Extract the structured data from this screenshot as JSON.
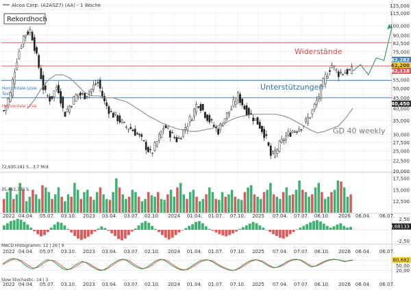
{
  "chart_data": {
    "type": "candlestick",
    "title": "Alcoa Corp. (A2ASZ7) (AA) - 1 Woche",
    "legend_label": "Alcoa Corp. (A2ASZ7) (AA) - 1 Woche",
    "scale": "log",
    "ylim": [
      20000,
      125000
    ],
    "y_ticks": [
      "125,000",
      "115,000",
      "100,000",
      "90,000",
      "82,500",
      "75,000",
      "67,500",
      "62,500",
      "55,000",
      "50,000",
      "45,000",
      "40,000",
      "35,000",
      "30,000",
      "27,500",
      "25,000",
      "22,500",
      "20,000"
    ],
    "x_ticks": [
      "2022",
      "04.04.",
      "05.07.",
      "03.10.",
      "2023",
      "03.04.",
      "03.07.",
      "02.10.",
      "2024",
      "01.04.",
      "01.07.",
      "07.10.",
      "2025",
      "07.04.",
      "07.07.",
      "06.10.",
      "2026",
      "06.04.",
      "06.07."
    ],
    "price_series": [
      {
        "date": "2022",
        "value": 39000
      },
      {
        "date": "2022-02",
        "value": 47000
      },
      {
        "date": "2022-03",
        "value": 70000
      },
      {
        "date": "04.04.",
        "value": 90000
      },
      {
        "date": "2022-04-15",
        "value": 95000
      },
      {
        "date": "2022-05",
        "value": 68000
      },
      {
        "date": "2022-06",
        "value": 48000
      },
      {
        "date": "05.07.",
        "value": 44000
      },
      {
        "date": "2022-08",
        "value": 52000
      },
      {
        "date": "2022-09",
        "value": 37000
      },
      {
        "date": "03.10.",
        "value": 42000
      },
      {
        "date": "2022-11",
        "value": 47000
      },
      {
        "date": "2022-12",
        "value": 46000
      },
      {
        "date": "2023",
        "value": 49000
      },
      {
        "date": "2023-02",
        "value": 54000
      },
      {
        "date": "2023-03",
        "value": 43000
      },
      {
        "date": "03.04.",
        "value": 38000
      },
      {
        "date": "2023-05",
        "value": 36000
      },
      {
        "date": "2023-06",
        "value": 33000
      },
      {
        "date": "03.07.",
        "value": 32000
      },
      {
        "date": "2023-08",
        "value": 30000
      },
      {
        "date": "2023-09",
        "value": 27000
      },
      {
        "date": "02.10.",
        "value": 24000
      },
      {
        "date": "2023-11",
        "value": 28000
      },
      {
        "date": "2023-12",
        "value": 33000
      },
      {
        "date": "2024",
        "value": 30000
      },
      {
        "date": "2024-02",
        "value": 28000
      },
      {
        "date": "2024-03",
        "value": 32000
      },
      {
        "date": "01.04.",
        "value": 36000
      },
      {
        "date": "2024-05",
        "value": 43000
      },
      {
        "date": "2024-06",
        "value": 38000
      },
      {
        "date": "01.07.",
        "value": 34000
      },
      {
        "date": "2024-08",
        "value": 31000
      },
      {
        "date": "2024-09",
        "value": 36000
      },
      {
        "date": "07.10.",
        "value": 40000
      },
      {
        "date": "2024-11",
        "value": 46000
      },
      {
        "date": "2024-12",
        "value": 40000
      },
      {
        "date": "2025",
        "value": 37000
      },
      {
        "date": "2025-02",
        "value": 34000
      },
      {
        "date": "2025-03",
        "value": 30000
      },
      {
        "date": "07.04.",
        "value": 23000
      },
      {
        "date": "2025-05",
        "value": 26000
      },
      {
        "date": "2025-06",
        "value": 29000
      },
      {
        "date": "07.07.",
        "value": 31000
      },
      {
        "date": "2025-08",
        "value": 32000
      },
      {
        "date": "2025-09",
        "value": 34000
      },
      {
        "date": "06.10.",
        "value": 38000
      },
      {
        "date": "2025-11",
        "value": 45000
      },
      {
        "date": "2025-12",
        "value": 56000
      },
      {
        "date": "2026",
        "value": 65000
      },
      {
        "date": "2026-02",
        "value": 59000
      },
      {
        "date": "2026-03",
        "value": 60000
      },
      {
        "date": "2026-03-15",
        "value": 60500
      }
    ],
    "ma_series": {
      "name": "GD 40 weekly",
      "values": [
        40000,
        44000,
        50000,
        55000,
        58000,
        58000,
        56000,
        52000,
        48000,
        46000,
        46000,
        45000,
        45000,
        44000,
        43000,
        41000,
        39000,
        37000,
        35500,
        34000,
        33000,
        32000,
        31500,
        31000,
        31000,
        31500,
        32000,
        33000,
        34000,
        35500,
        36500,
        37000,
        37500,
        37500,
        37500,
        37500,
        37000,
        36000,
        34500,
        33000,
        31500,
        30500,
        31000,
        32000,
        33000,
        36000,
        40000
      ]
    },
    "price_labels": [
      {
        "text": "62,282",
        "color": "#4a7fb0"
      },
      {
        "text": "62,200",
        "color": "#f2d43d"
      },
      {
        "text": "62,118",
        "color": "#e05560"
      },
      {
        "text": "40,450",
        "color": "#333333"
      }
    ],
    "levels": [
      {
        "name": "Rekordhoch",
        "value": 82800,
        "color": "#e36b6b"
      },
      {
        "name": "Widerstände",
        "value": 64000,
        "color": "#e36b6b"
      },
      {
        "name": "Unterstützungen",
        "value": 54500,
        "color": "#3d7fc0"
      },
      {
        "name": "Horizontale Linie",
        "value": 45000,
        "color": "#3d7fc0"
      }
    ],
    "annotations": {
      "record_high": "Rekordhoch",
      "resistance": "Widerstände",
      "support": "Unterstützungen",
      "ma": "GD 40 weekly",
      "hline_blue": "Horizontale Linie",
      "hline_blue_sub": "Text",
      "hline_red": "Horizontale Linie"
    },
    "projection": [
      60500,
      65000,
      58000,
      70000,
      68000,
      98000
    ],
    "volume": {
      "ticks": [
        "17,500",
        "15,000",
        "12,500"
      ],
      "label_max": "72,930,181 S., 3,7 Mrd.",
      "label_min": "35,463,736 S.",
      "ylim": [
        10000,
        18500
      ],
      "values": [
        13000,
        14500,
        15500,
        13000,
        14000,
        16500,
        15000,
        12500,
        13500,
        15000,
        14000,
        13000,
        16000,
        15500,
        14500,
        13000,
        14000,
        15500,
        13500,
        12500,
        14000,
        13500,
        16500,
        15000,
        13000,
        14500,
        15000,
        13500,
        12800,
        14500,
        15500,
        14000,
        13000,
        12800,
        14500,
        17500,
        15500,
        14000,
        13000,
        13500,
        15000,
        14500,
        13500,
        12500,
        13000,
        14500,
        13800,
        13500,
        14500,
        13000,
        12800,
        14000,
        15000,
        13500,
        15500,
        16500,
        14000,
        13000,
        14500,
        15000,
        13500,
        12500,
        13000,
        14000,
        15500,
        14500,
        13000,
        12800,
        14500,
        13500,
        14000,
        15000,
        13500,
        13000,
        12800,
        14500,
        15500,
        16000,
        14000,
        13500,
        13000,
        14500,
        15000,
        16500,
        14000,
        13500,
        13000,
        14500,
        15500,
        13800,
        14000,
        15000,
        17000,
        15000,
        14500,
        13500,
        14000,
        15500,
        16500,
        14500,
        13000,
        13500,
        14500,
        15000,
        17000,
        16800,
        15500,
        13500,
        14000
      ]
    },
    "macd": {
      "label": "MACD Histogramm: 12 | 26 | 9",
      "ticks": [
        "2,50",
        "0,68133",
        "-2,50"
      ],
      "value_label": "0,68133",
      "values": [
        1,
        1.5,
        2,
        2.2,
        2.5,
        2.3,
        1.8,
        1.2,
        0.5,
        -0.3,
        -1,
        -1.5,
        -1.2,
        -0.5,
        0.5,
        1.2,
        1.8,
        1.6,
        1.0,
        0.2,
        -0.6,
        -1.4,
        -2.0,
        -2.3,
        -2.0,
        -1.6,
        -1.0,
        -0.4,
        0.3,
        0.8,
        0.4,
        -0.2,
        -0.8,
        -1.4,
        -2.1,
        -2.4,
        -2.0,
        -1.2,
        -0.4,
        0.3,
        1.0,
        1.6,
        2.0,
        1.6,
        0.9,
        0.2,
        -0.5,
        -1.2,
        -1.8,
        -2.2,
        -1.8,
        -1.2,
        -0.6,
        -0.1,
        0.4,
        0.9,
        1.3,
        1.8,
        2.0,
        1.5,
        0.8,
        0.2,
        -0.2,
        -0.6,
        -1.0,
        -1.3,
        -1.5,
        -1.2,
        -0.8,
        -0.4,
        0.2,
        0.6,
        1.0,
        1.4,
        1.8,
        1.5,
        1.0,
        0.5,
        0.0,
        -0.5,
        -1.0,
        -1.4,
        -1.8,
        -2.0,
        -1.6,
        -1.0,
        -0.5,
        0.1,
        0.5,
        0.9,
        1.3,
        1.7,
        2.0,
        2.2,
        1.9,
        1.4,
        0.9,
        0.5,
        0.8,
        1.2,
        1.5,
        0.9,
        0.5,
        0.68
      ]
    },
    "stochastic": {
      "label": "Slow Stochastic: 14 | 3",
      "ticks": [
        "80,682",
        "50,00",
        "20,00"
      ],
      "value_label": "80,682",
      "k": [
        60,
        75,
        88,
        92,
        85,
        70,
        50,
        35,
        28,
        40,
        58,
        75,
        85,
        80,
        65,
        45,
        30,
        22,
        30,
        48,
        62,
        75,
        68,
        52,
        38,
        25,
        18,
        25,
        40,
        58,
        72,
        85,
        88,
        78,
        62,
        45,
        35,
        28,
        35,
        50,
        68,
        82,
        88,
        80,
        65,
        48,
        35,
        25,
        20,
        28,
        42,
        58,
        72,
        82,
        85,
        80,
        68,
        52,
        40,
        30,
        22,
        18,
        25,
        38,
        55,
        70,
        80,
        85,
        80,
        70,
        55,
        42,
        35,
        40,
        52,
        66,
        78,
        86,
        88,
        82,
        68,
        52,
        40,
        45,
        58,
        70,
        80,
        85,
        88,
        84,
        78,
        72,
        80,
        82
      ],
      "d": [
        55,
        68,
        80,
        88,
        88,
        78,
        62,
        45,
        34,
        35,
        48,
        65,
        78,
        82,
        75,
        58,
        40,
        28,
        26,
        38,
        52,
        68,
        70,
        60,
        45,
        32,
        22,
        22,
        32,
        48,
        64,
        78,
        86,
        84,
        72,
        55,
        42,
        32,
        32,
        42,
        58,
        74,
        85,
        85,
        74,
        58,
        42,
        30,
        24,
        24,
        34,
        48,
        64,
        76,
        82,
        82,
        74,
        60,
        46,
        36,
        26,
        20,
        22,
        32,
        46,
        62,
        74,
        82,
        82,
        76,
        62,
        48,
        38,
        38,
        46,
        58,
        72,
        82,
        86,
        84,
        74,
        60,
        46,
        44,
        52,
        64,
        75,
        82,
        86,
        85,
        80,
        75,
        78,
        80
      ]
    },
    "grid": true
  }
}
